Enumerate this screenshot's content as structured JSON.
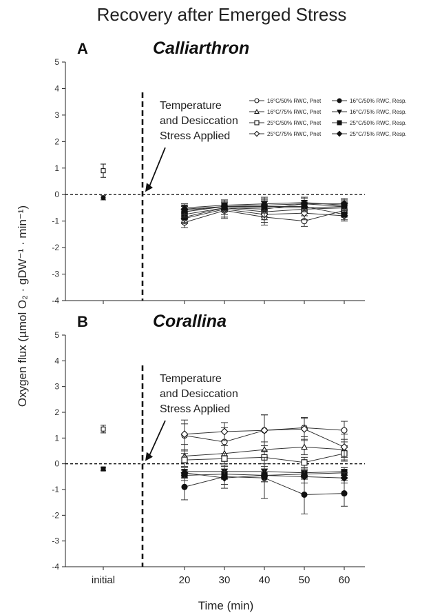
{
  "figure": {
    "title": "Recovery after Emerged Stress",
    "ylabel": "Oxygen flux (µmol O₂ · gDW⁻¹ · min⁻¹)",
    "xlabel": "Time (min)"
  },
  "chart_data": [
    {
      "type": "line",
      "panel": "A",
      "title": "Calliarthron",
      "xlabel": "Time (min)",
      "ylabel": "Oxygen flux (µmol O₂ · gDW⁻¹ · min⁻¹)",
      "x_categories": [
        "initial",
        "20",
        "30",
        "40",
        "50",
        "60"
      ],
      "ylim": [
        -4,
        5
      ],
      "yticks": [
        -4,
        -3,
        -2,
        -1,
        0,
        1,
        2,
        3,
        4,
        5
      ],
      "annotation": [
        "Temperature",
        "and Desiccation",
        "Stress Applied"
      ],
      "initial": [
        {
          "label": "Pnet",
          "marker": "open-square",
          "value": 0.9,
          "err": 0.25
        },
        {
          "label": "Resp.",
          "marker": "filled-circle",
          "value": -0.12,
          "err": 0.08
        }
      ],
      "x": [
        20,
        30,
        40,
        50,
        60
      ],
      "series": [
        {
          "name": "16°C/50% RWC, Pnet",
          "marker": "open-circle",
          "values": [
            -1.05,
            -0.6,
            -0.85,
            -1.0,
            -0.6
          ],
          "err": [
            0.2,
            0.3,
            0.3,
            0.2,
            0.2
          ]
        },
        {
          "name": "16°C/75% RWC, Pnet",
          "marker": "open-triangle",
          "values": [
            -0.6,
            -0.45,
            -0.5,
            -0.5,
            -0.45
          ],
          "err": [
            0.2,
            0.2,
            0.25,
            0.2,
            0.2
          ]
        },
        {
          "name": "25°C/50% RWC, Pnet",
          "marker": "open-square",
          "values": [
            -0.75,
            -0.5,
            -0.65,
            -0.55,
            -0.5
          ],
          "err": [
            0.2,
            0.25,
            0.3,
            0.25,
            0.2
          ]
        },
        {
          "name": "25°C/75% RWC, Pnet",
          "marker": "open-diamond",
          "values": [
            -0.9,
            -0.55,
            -0.75,
            -0.7,
            -0.8
          ],
          "err": [
            0.2,
            0.3,
            0.3,
            0.25,
            0.2
          ]
        },
        {
          "name": "16°C/50% RWC, Resp.",
          "marker": "filled-circle",
          "values": [
            -0.85,
            -0.5,
            -0.55,
            -0.35,
            -0.45
          ],
          "err": [
            0.2,
            0.25,
            0.3,
            0.25,
            0.2
          ]
        },
        {
          "name": "16°C/75% RWC, Resp.",
          "marker": "filled-triangle",
          "values": [
            -0.5,
            -0.4,
            -0.35,
            -0.3,
            -0.4
          ],
          "err": [
            0.15,
            0.2,
            0.25,
            0.2,
            0.2
          ]
        },
        {
          "name": "25°C/50% RWC, Resp.",
          "marker": "filled-square",
          "values": [
            -0.65,
            -0.45,
            -0.45,
            -0.45,
            -0.75
          ],
          "err": [
            0.2,
            0.2,
            0.25,
            0.2,
            0.2
          ]
        },
        {
          "name": "25°C/75% RWC, Resp.",
          "marker": "filled-diamond",
          "values": [
            -0.55,
            -0.45,
            -0.4,
            -0.35,
            -0.35
          ],
          "err": [
            0.2,
            0.2,
            0.25,
            0.2,
            0.2
          ]
        }
      ]
    },
    {
      "type": "line",
      "panel": "B",
      "title": "Corallina",
      "xlabel": "Time (min)",
      "ylabel": "Oxygen flux (µmol O₂ · gDW⁻¹ · min⁻¹)",
      "x_categories": [
        "initial",
        "20",
        "30",
        "40",
        "50",
        "60"
      ],
      "ylim": [
        -4,
        5
      ],
      "yticks": [
        -4,
        -3,
        -2,
        -1,
        0,
        1,
        2,
        3,
        4,
        5
      ],
      "annotation": [
        "Temperature",
        "and Desiccation",
        "Stress Applied"
      ],
      "initial": [
        {
          "label": "Pnet",
          "marker": "open-square",
          "value": 1.35,
          "err": 0.15
        },
        {
          "label": "Resp.",
          "marker": "filled-square",
          "value": -0.2,
          "err": 0.07
        }
      ],
      "x": [
        20,
        30,
        40,
        50,
        60
      ],
      "series": [
        {
          "name": "16°C/50% RWC, Pnet",
          "marker": "open-circle",
          "values": [
            1.1,
            0.85,
            1.3,
            1.4,
            1.3
          ],
          "err": [
            0.6,
            0.55,
            0.6,
            0.35,
            0.35
          ]
        },
        {
          "name": "16°C/75% RWC, Pnet",
          "marker": "open-triangle",
          "values": [
            0.3,
            0.4,
            0.55,
            0.65,
            0.55
          ],
          "err": [
            0.25,
            0.3,
            0.3,
            0.3,
            0.3
          ]
        },
        {
          "name": "25°C/50% RWC, Pnet",
          "marker": "open-square",
          "values": [
            0.15,
            0.2,
            0.25,
            0.05,
            0.4
          ],
          "err": [
            0.25,
            0.2,
            0.25,
            0.2,
            0.3
          ]
        },
        {
          "name": "25°C/75% RWC, Pnet",
          "marker": "open-diamond",
          "values": [
            1.15,
            1.25,
            1.3,
            1.35,
            0.65
          ],
          "err": [
            0.4,
            0.35,
            0.6,
            0.45,
            0.5
          ]
        },
        {
          "name": "16°C/50% RWC, Resp.",
          "marker": "filled-circle",
          "values": [
            -0.9,
            -0.5,
            -0.55,
            -1.2,
            -1.15
          ],
          "err": [
            0.5,
            0.45,
            0.8,
            0.75,
            0.5
          ]
        },
        {
          "name": "16°C/75% RWC, Resp.",
          "marker": "filled-triangle",
          "values": [
            -0.3,
            -0.3,
            -0.3,
            -0.35,
            -0.3
          ],
          "err": [
            0.15,
            0.2,
            0.2,
            0.2,
            0.15
          ]
        },
        {
          "name": "25°C/50% RWC, Resp.",
          "marker": "filled-square",
          "values": [
            -0.45,
            -0.4,
            -0.45,
            -0.4,
            -0.35
          ],
          "err": [
            0.2,
            0.2,
            0.25,
            0.2,
            0.2
          ]
        },
        {
          "name": "25°C/75% RWC, Resp.",
          "marker": "filled-diamond",
          "values": [
            -0.35,
            -0.55,
            -0.45,
            -0.5,
            -0.55
          ],
          "err": [
            0.2,
            0.25,
            0.25,
            0.25,
            0.2
          ]
        }
      ]
    }
  ]
}
